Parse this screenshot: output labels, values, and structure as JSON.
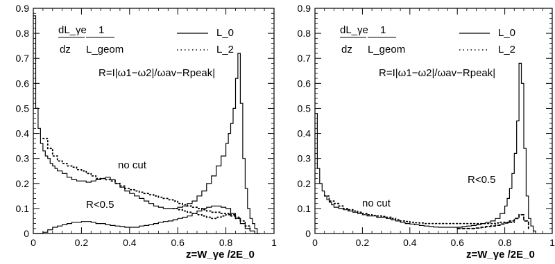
{
  "chart_data": [
    {
      "type": "line",
      "xlabel": "z=W_γe /2E_0",
      "xlim": [
        0,
        1
      ],
      "ylim": [
        0,
        0.9
      ],
      "xticks": [
        "0",
        "0.2",
        "0.4",
        "0.6",
        "0.8",
        "1"
      ],
      "yticks": [
        "0",
        "0.1",
        "0.2",
        "0.3",
        "0.4",
        "0.5",
        "0.6",
        "0.7",
        "0.8",
        "0.9"
      ],
      "legend": {
        "formula_numerator": "dL_γe",
        "formula_denominator": "dz",
        "formula_one": "1",
        "formula_geom": "L_geom",
        "solid_label": "L_0",
        "dotted_label": "L_2",
        "r_definition": "R=I|ω1−ω2|/ωav−Rpeak|"
      },
      "annotations": [
        "no cut",
        "R<0.5"
      ],
      "series": [
        {
          "name": "L_0 no cut",
          "style": "solid",
          "x": [
            0.0,
            0.01,
            0.02,
            0.03,
            0.04,
            0.05,
            0.06,
            0.07,
            0.08,
            0.09,
            0.1,
            0.12,
            0.14,
            0.16,
            0.18,
            0.2,
            0.22,
            0.24,
            0.26,
            0.28,
            0.3,
            0.32,
            0.34,
            0.36,
            0.38,
            0.4,
            0.42,
            0.44,
            0.46,
            0.48,
            0.5,
            0.52,
            0.54,
            0.56,
            0.58,
            0.6,
            0.62,
            0.64,
            0.66,
            0.68,
            0.7,
            0.72,
            0.74,
            0.76,
            0.78,
            0.8,
            0.81,
            0.82,
            0.83,
            0.84,
            0.85,
            0.86,
            0.87,
            0.88,
            0.89,
            0.9,
            0.91,
            0.92,
            0.93,
            0.94
          ],
          "y": [
            0.87,
            0.5,
            0.42,
            0.36,
            0.33,
            0.31,
            0.3,
            0.28,
            0.27,
            0.26,
            0.25,
            0.24,
            0.225,
            0.215,
            0.21,
            0.21,
            0.205,
            0.21,
            0.215,
            0.22,
            0.225,
            0.215,
            0.2,
            0.185,
            0.17,
            0.16,
            0.15,
            0.14,
            0.13,
            0.12,
            0.11,
            0.105,
            0.1,
            0.1,
            0.1,
            0.105,
            0.11,
            0.12,
            0.13,
            0.15,
            0.17,
            0.2,
            0.23,
            0.27,
            0.31,
            0.36,
            0.4,
            0.44,
            0.5,
            0.62,
            0.72,
            0.52,
            0.3,
            0.18,
            0.1,
            0.06,
            0.04,
            0.02,
            0.0,
            0.0
          ]
        },
        {
          "name": "L_2 no cut",
          "style": "dotted",
          "x": [
            0.04,
            0.06,
            0.08,
            0.1,
            0.12,
            0.14,
            0.16,
            0.18,
            0.2,
            0.22,
            0.24,
            0.26,
            0.28,
            0.3,
            0.32,
            0.34,
            0.36,
            0.38,
            0.4,
            0.42,
            0.44,
            0.46,
            0.48,
            0.5,
            0.52,
            0.54,
            0.56,
            0.58,
            0.6,
            0.62,
            0.64,
            0.66,
            0.68,
            0.7,
            0.72,
            0.74,
            0.76,
            0.78,
            0.8,
            0.82,
            0.84,
            0.86
          ],
          "y": [
            0.38,
            0.34,
            0.31,
            0.29,
            0.28,
            0.27,
            0.265,
            0.255,
            0.25,
            0.24,
            0.23,
            0.22,
            0.22,
            0.215,
            0.21,
            0.2,
            0.19,
            0.18,
            0.175,
            0.17,
            0.165,
            0.16,
            0.155,
            0.15,
            0.145,
            0.14,
            0.135,
            0.13,
            0.12,
            0.115,
            0.11,
            0.105,
            0.1,
            0.095,
            0.09,
            0.085,
            0.085,
            0.08,
            0.08,
            0.075,
            0.065,
            0.05
          ]
        },
        {
          "name": "L_0 R<0.5",
          "style": "solid",
          "x": [
            0.0,
            0.04,
            0.06,
            0.08,
            0.1,
            0.12,
            0.14,
            0.16,
            0.18,
            0.2,
            0.22,
            0.24,
            0.26,
            0.28,
            0.3,
            0.32,
            0.34,
            0.36,
            0.38,
            0.4,
            0.42,
            0.44,
            0.46,
            0.48,
            0.5,
            0.52,
            0.54,
            0.56,
            0.58,
            0.6,
            0.62,
            0.64,
            0.66,
            0.68,
            0.7,
            0.72,
            0.74,
            0.76,
            0.78,
            0.8,
            0.82,
            0.84,
            0.86,
            0.88,
            0.9,
            0.92,
            0.94
          ],
          "y": [
            0.0,
            0.005,
            0.015,
            0.025,
            0.03,
            0.035,
            0.04,
            0.045,
            0.045,
            0.048,
            0.048,
            0.045,
            0.04,
            0.04,
            0.035,
            0.032,
            0.03,
            0.028,
            0.025,
            0.025,
            0.025,
            0.03,
            0.032,
            0.035,
            0.04,
            0.045,
            0.048,
            0.05,
            0.055,
            0.06,
            0.065,
            0.07,
            0.08,
            0.09,
            0.1,
            0.105,
            0.11,
            0.11,
            0.105,
            0.1,
            0.08,
            0.06,
            0.04,
            0.02,
            0.01,
            0.0,
            0.0
          ]
        },
        {
          "name": "L_2 R<0.5",
          "style": "dotted",
          "x": [
            0.58,
            0.6,
            0.62,
            0.64,
            0.66,
            0.68,
            0.7,
            0.72,
            0.74,
            0.76,
            0.78,
            0.8,
            0.82,
            0.84,
            0.86,
            0.88,
            0.9
          ],
          "y": [
            0.1,
            0.095,
            0.09,
            0.085,
            0.08,
            0.075,
            0.07,
            0.065,
            0.06,
            0.065,
            0.07,
            0.075,
            0.07,
            0.06,
            0.05,
            0.03,
            0.01
          ]
        }
      ]
    },
    {
      "type": "line",
      "xlabel": "z=W_γe /2E_0",
      "xlim": [
        0,
        1
      ],
      "ylim": [
        0,
        0.9
      ],
      "xticks": [
        "0",
        "0.2",
        "0.4",
        "0.6",
        "0.8",
        "1"
      ],
      "yticks": [
        "0",
        "0.1",
        "0.2",
        "0.3",
        "0.4",
        "0.5",
        "0.6",
        "0.7",
        "0.8",
        "0.9"
      ],
      "legend": {
        "formula_numerator": "dL_γe",
        "formula_denominator": "dz",
        "formula_one": "1",
        "formula_geom": "L_geom",
        "solid_label": "L_0",
        "dotted_label": "L_2",
        "r_definition": "R=I|ω1−ω2|/ωav−Rpeak|"
      },
      "annotations": [
        "no cut",
        "R<0.5"
      ],
      "series": [
        {
          "name": "L_0 no cut",
          "style": "solid",
          "x": [
            0.0,
            0.01,
            0.02,
            0.03,
            0.04,
            0.05,
            0.06,
            0.07,
            0.08,
            0.1,
            0.12,
            0.14,
            0.16,
            0.18,
            0.2,
            0.22,
            0.24,
            0.26,
            0.28,
            0.3,
            0.32,
            0.34,
            0.36,
            0.38,
            0.4,
            0.42,
            0.44,
            0.46,
            0.48,
            0.5,
            0.52,
            0.54,
            0.56,
            0.58,
            0.6,
            0.62,
            0.64,
            0.66,
            0.68,
            0.7,
            0.72,
            0.74,
            0.76,
            0.78,
            0.8,
            0.81,
            0.82,
            0.83,
            0.84,
            0.85,
            0.86,
            0.87,
            0.88,
            0.89,
            0.9,
            0.91,
            0.92,
            0.93
          ],
          "y": [
            0.48,
            0.26,
            0.2,
            0.17,
            0.15,
            0.135,
            0.125,
            0.115,
            0.105,
            0.1,
            0.095,
            0.09,
            0.085,
            0.08,
            0.075,
            0.07,
            0.07,
            0.065,
            0.065,
            0.06,
            0.055,
            0.05,
            0.045,
            0.04,
            0.038,
            0.035,
            0.032,
            0.03,
            0.028,
            0.026,
            0.025,
            0.025,
            0.025,
            0.025,
            0.025,
            0.028,
            0.03,
            0.032,
            0.035,
            0.04,
            0.045,
            0.05,
            0.06,
            0.08,
            0.11,
            0.14,
            0.18,
            0.24,
            0.32,
            0.45,
            0.68,
            0.6,
            0.34,
            0.15,
            0.06,
            0.03,
            0.01,
            0.0
          ]
        },
        {
          "name": "L_2 no cut",
          "style": "dotted",
          "x": [
            0.04,
            0.06,
            0.08,
            0.1,
            0.12,
            0.14,
            0.16,
            0.18,
            0.2,
            0.22,
            0.24,
            0.26,
            0.28,
            0.3,
            0.32,
            0.34,
            0.36,
            0.38,
            0.4,
            0.42,
            0.44,
            0.46,
            0.48,
            0.5,
            0.52,
            0.54,
            0.56,
            0.58,
            0.6,
            0.62,
            0.64,
            0.66,
            0.68,
            0.7,
            0.72,
            0.74,
            0.76,
            0.78,
            0.8,
            0.82,
            0.84
          ],
          "y": [
            0.15,
            0.13,
            0.12,
            0.11,
            0.1,
            0.095,
            0.09,
            0.085,
            0.08,
            0.075,
            0.072,
            0.07,
            0.068,
            0.065,
            0.06,
            0.055,
            0.05,
            0.048,
            0.045,
            0.043,
            0.042,
            0.04,
            0.04,
            0.04,
            0.04,
            0.04,
            0.04,
            0.04,
            0.04,
            0.04,
            0.04,
            0.04,
            0.04,
            0.04,
            0.04,
            0.04,
            0.042,
            0.045,
            0.045,
            0.045,
            0.045
          ]
        },
        {
          "name": "L_2 R<0.5",
          "style": "dashed",
          "x": [
            0.6,
            0.62,
            0.64,
            0.66,
            0.68,
            0.7,
            0.72,
            0.74,
            0.76,
            0.78,
            0.8,
            0.82,
            0.84,
            0.86,
            0.88,
            0.9
          ],
          "y": [
            0.02,
            0.02,
            0.02,
            0.02,
            0.022,
            0.025,
            0.028,
            0.03,
            0.033,
            0.038,
            0.042,
            0.05,
            0.06,
            0.075,
            0.05,
            0.02
          ]
        }
      ]
    }
  ]
}
